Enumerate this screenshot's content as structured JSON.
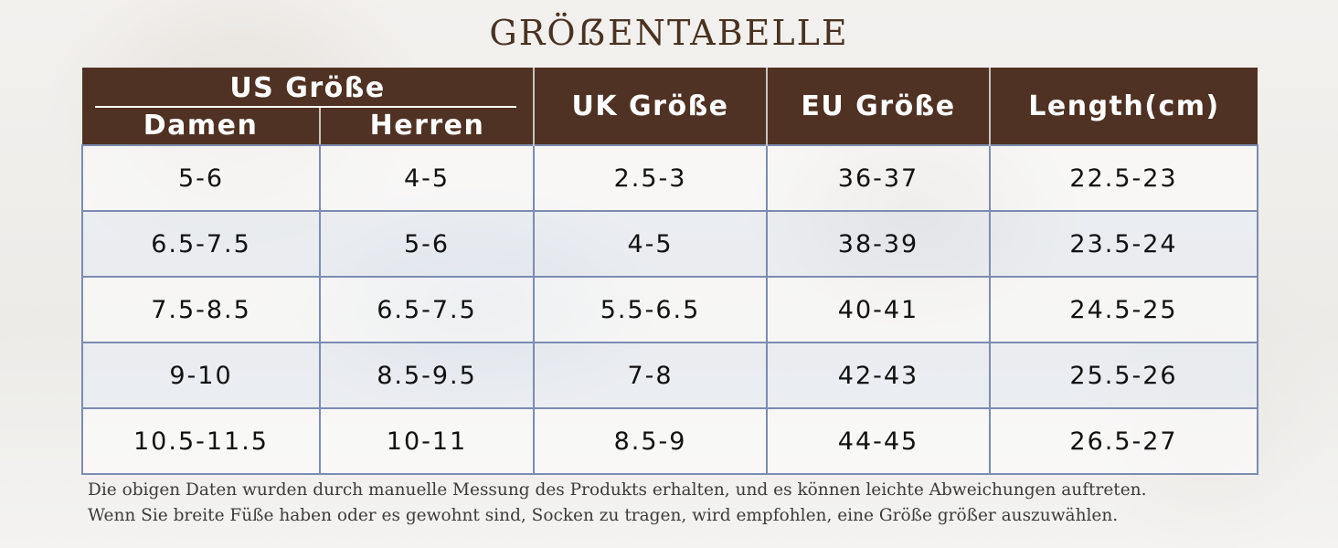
{
  "title": "GRÖẞENTABELLE",
  "headers": {
    "us": "US Größe",
    "us_women": "Damen",
    "us_men": "Herren",
    "uk": "UK Größe",
    "eu": "EU Größe",
    "length": "Length(cm)"
  },
  "rows": [
    [
      "5-6",
      "4-5",
      "2.5-3",
      "36-37",
      "22.5-23"
    ],
    [
      "6.5-7.5",
      "5-6",
      "4-5",
      "38-39",
      "23.5-24"
    ],
    [
      "7.5-8.5",
      "6.5-7.5",
      "5.5-6.5",
      "40-41",
      "24.5-25"
    ],
    [
      "9-10",
      "8.5-9.5",
      "7-8",
      "42-43",
      "25.5-26"
    ],
    [
      "10.5-11.5",
      "10-11",
      "8.5-9",
      "44-45",
      "26.5-27"
    ]
  ],
  "note": [
    "Die obigen Daten wurden durch manuelle Messung des Produkts erhalten, und es können leichte Abweichungen auftreten.",
    "Wenn Sie breite Füße haben oder es gewohnt sind, Socken zu tragen, wird empfohlen, eine Größe größer auszuwählen."
  ],
  "colors": {
    "header_bg": "#4f3223",
    "title": "#4a3222",
    "grid": "#7c8bb0"
  }
}
